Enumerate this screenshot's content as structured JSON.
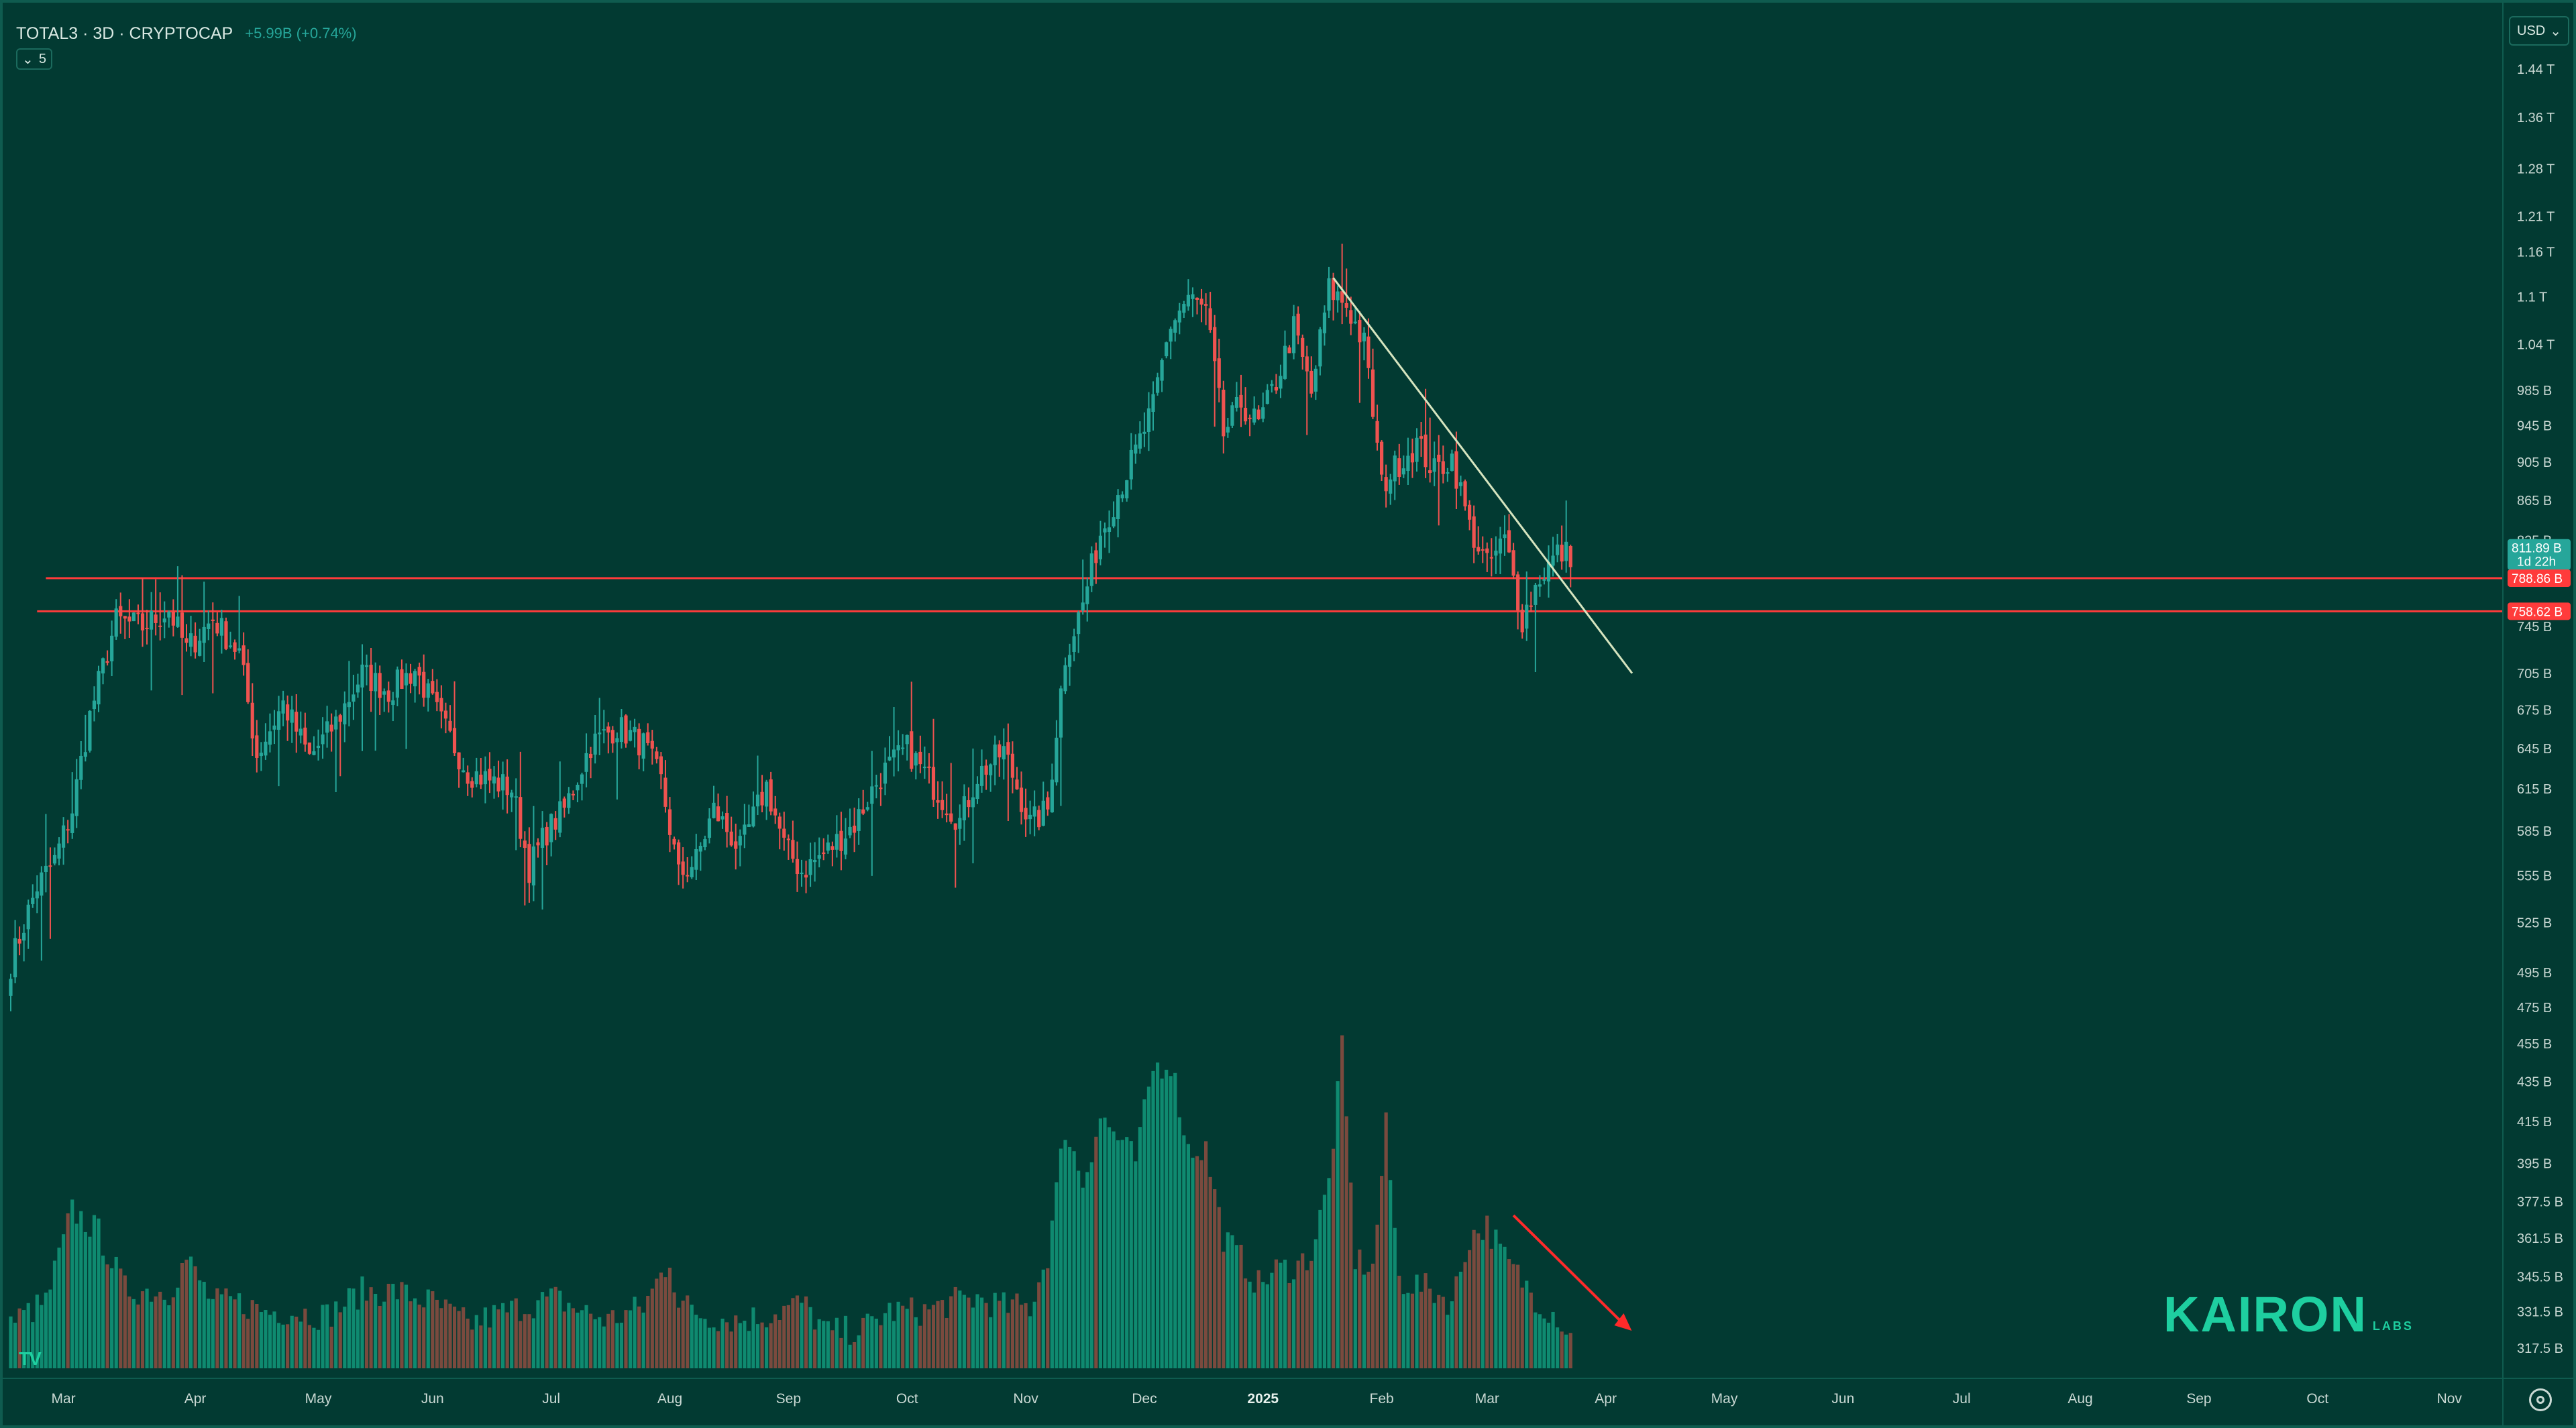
{
  "header": {
    "symbol": "TOTAL3 · 3D · CRYPTOCAP",
    "change": "+5.99B (+0.74%)"
  },
  "collapse_button": {
    "icon": "chevron-down-icon",
    "count": "5"
  },
  "currency": {
    "label": "USD",
    "icon": "chevron-down-icon"
  },
  "brand": {
    "name": "KAIRON",
    "sub": "LABS"
  },
  "colors": {
    "background": "#023a32",
    "up": "#26a69a",
    "down": "#ef5350",
    "volume_up": "#0f8a70",
    "volume_down": "#7a4a3e",
    "trendline": "#d6e4bf",
    "level": "#ff3b3b",
    "current_tag": "#26a69a"
  },
  "chart_data": {
    "type": "candlestick",
    "interval": "3D",
    "y_scale": "log",
    "ylim": [
      310,
      1490
    ],
    "price_axis_labels": [
      {
        "label": "1.44 T",
        "value": 1440
      },
      {
        "label": "1.36 T",
        "value": 1360
      },
      {
        "label": "1.28 T",
        "value": 1280
      },
      {
        "label": "1.21 T",
        "value": 1210
      },
      {
        "label": "1.16 T",
        "value": 1160
      },
      {
        "label": "1.1 T",
        "value": 1100
      },
      {
        "label": "1.04 T",
        "value": 1040
      },
      {
        "label": "985 B",
        "value": 985
      },
      {
        "label": "945 B",
        "value": 945
      },
      {
        "label": "905 B",
        "value": 905
      },
      {
        "label": "865 B",
        "value": 865
      },
      {
        "label": "825 B",
        "value": 825
      },
      {
        "label": "745 B",
        "value": 745
      },
      {
        "label": "705 B",
        "value": 705
      },
      {
        "label": "675 B",
        "value": 675
      },
      {
        "label": "645 B",
        "value": 645
      },
      {
        "label": "615 B",
        "value": 615
      },
      {
        "label": "585 B",
        "value": 585
      },
      {
        "label": "555 B",
        "value": 555
      },
      {
        "label": "525 B",
        "value": 525
      },
      {
        "label": "495 B",
        "value": 495
      },
      {
        "label": "475 B",
        "value": 475
      },
      {
        "label": "455 B",
        "value": 455
      },
      {
        "label": "435 B",
        "value": 435
      },
      {
        "label": "415 B",
        "value": 415
      },
      {
        "label": "395 B",
        "value": 395
      },
      {
        "label": "377.5 B",
        "value": 377.5
      },
      {
        "label": "361.5 B",
        "value": 361.5
      },
      {
        "label": "345.5 B",
        "value": 345.5
      },
      {
        "label": "331.5 B",
        "value": 331.5
      },
      {
        "label": "317.5 B",
        "value": 317.5
      }
    ],
    "time_axis_labels": [
      {
        "label": "Mar",
        "bar": 12
      },
      {
        "label": "Apr",
        "bar": 42
      },
      {
        "label": "May",
        "bar": 70
      },
      {
        "label": "Jun",
        "bar": 96
      },
      {
        "label": "Jul",
        "bar": 123
      },
      {
        "label": "Aug",
        "bar": 150
      },
      {
        "label": "Sep",
        "bar": 177
      },
      {
        "label": "Oct",
        "bar": 204
      },
      {
        "label": "Nov",
        "bar": 231
      },
      {
        "label": "Dec",
        "bar": 258
      },
      {
        "label": "2025",
        "bar": 285,
        "bold": true
      },
      {
        "label": "Feb",
        "bar": 312
      },
      {
        "label": "Mar",
        "bar": 336
      },
      {
        "label": "Apr",
        "bar": 363
      },
      {
        "label": "May",
        "bar": 390
      },
      {
        "label": "Jun",
        "bar": 417
      },
      {
        "label": "Jul",
        "bar": 444
      },
      {
        "label": "Aug",
        "bar": 471
      },
      {
        "label": "Sep",
        "bar": 498
      },
      {
        "label": "Oct",
        "bar": 525
      },
      {
        "label": "Nov",
        "bar": 555
      }
    ],
    "price_key": [
      [
        0,
        500
      ],
      [
        6,
        548
      ],
      [
        10,
        565
      ],
      [
        14,
        600
      ],
      [
        18,
        670
      ],
      [
        24,
        750
      ],
      [
        30,
        745
      ],
      [
        36,
        760
      ],
      [
        40,
        725
      ],
      [
        46,
        752
      ],
      [
        52,
        722
      ],
      [
        56,
        640
      ],
      [
        62,
        680
      ],
      [
        68,
        638
      ],
      [
        74,
        665
      ],
      [
        80,
        705
      ],
      [
        86,
        690
      ],
      [
        92,
        708
      ],
      [
        98,
        665
      ],
      [
        104,
        628
      ],
      [
        110,
        620
      ],
      [
        114,
        615
      ],
      [
        118,
        560
      ],
      [
        122,
        585
      ],
      [
        126,
        600
      ],
      [
        132,
        648
      ],
      [
        138,
        662
      ],
      [
        144,
        648
      ],
      [
        148,
        620
      ],
      [
        152,
        555
      ],
      [
        156,
        565
      ],
      [
        160,
        600
      ],
      [
        166,
        572
      ],
      [
        172,
        617
      ],
      [
        176,
        575
      ],
      [
        180,
        558
      ],
      [
        186,
        572
      ],
      [
        192,
        590
      ],
      [
        198,
        625
      ],
      [
        204,
        645
      ],
      [
        210,
        617
      ],
      [
        216,
        592
      ],
      [
        220,
        625
      ],
      [
        226,
        643
      ],
      [
        232,
        590
      ],
      [
        236,
        600
      ],
      [
        240,
        720
      ],
      [
        244,
        765
      ],
      [
        248,
        832
      ],
      [
        252,
        873
      ],
      [
        256,
        915
      ],
      [
        260,
        965
      ],
      [
        264,
        1065
      ],
      [
        268,
        1100
      ],
      [
        272,
        1080
      ],
      [
        276,
        935
      ],
      [
        280,
        970
      ],
      [
        284,
        945
      ],
      [
        288,
        995
      ],
      [
        292,
        1060
      ],
      [
        296,
        980
      ],
      [
        300,
        1110
      ],
      [
        304,
        1090
      ],
      [
        308,
        1040
      ],
      [
        312,
        880
      ],
      [
        316,
        905
      ],
      [
        320,
        925
      ],
      [
        324,
        895
      ],
      [
        328,
        910
      ],
      [
        332,
        838
      ],
      [
        336,
        800
      ],
      [
        340,
        825
      ],
      [
        344,
        752
      ],
      [
        348,
        790
      ],
      [
        352,
        812
      ],
      [
        355,
        812
      ]
    ],
    "levels": [
      {
        "price": 788.86,
        "label": "788.86 B",
        "from_bar": 8
      },
      {
        "price": 758.62,
        "label": "758.62 B",
        "from_bar": 6
      }
    ],
    "current": {
      "price": 811.89,
      "label": "811.89 B",
      "countdown": "1d 22h"
    },
    "trendline": {
      "from": {
        "bar": 301,
        "price": 1125
      },
      "to": {
        "bar": 369,
        "price": 705
      }
    },
    "volume_arrow": {
      "from_bar": 342,
      "to_bar": 368
    },
    "volume_base": 310,
    "volume_peak": 460,
    "volume_key": [
      [
        0,
        331
      ],
      [
        8,
        340
      ],
      [
        14,
        382
      ],
      [
        20,
        372
      ],
      [
        26,
        346
      ],
      [
        36,
        345
      ],
      [
        40,
        360
      ],
      [
        46,
        340
      ],
      [
        52,
        340
      ],
      [
        58,
        336
      ],
      [
        64,
        336
      ],
      [
        72,
        334
      ],
      [
        80,
        345
      ],
      [
        88,
        345
      ],
      [
        96,
        340
      ],
      [
        104,
        330
      ],
      [
        110,
        334
      ],
      [
        116,
        338
      ],
      [
        124,
        342
      ],
      [
        130,
        336
      ],
      [
        136,
        332
      ],
      [
        144,
        338
      ],
      [
        150,
        360
      ],
      [
        152,
        340
      ],
      [
        158,
        334
      ],
      [
        166,
        332
      ],
      [
        172,
        334
      ],
      [
        180,
        340
      ],
      [
        186,
        326
      ],
      [
        194,
        328
      ],
      [
        200,
        336
      ],
      [
        208,
        336
      ],
      [
        214,
        340
      ],
      [
        220,
        342
      ],
      [
        226,
        338
      ],
      [
        232,
        338
      ],
      [
        234,
        350
      ],
      [
        236,
        362
      ],
      [
        240,
        420
      ],
      [
        244,
        395
      ],
      [
        248,
        425
      ],
      [
        252,
        415
      ],
      [
        256,
        405
      ],
      [
        260,
        447
      ],
      [
        264,
        450
      ],
      [
        268,
        410
      ],
      [
        272,
        410
      ],
      [
        276,
        370
      ],
      [
        280,
        360
      ],
      [
        284,
        348
      ],
      [
        288,
        355
      ],
      [
        292,
        356
      ],
      [
        296,
        362
      ],
      [
        300,
        395
      ],
      [
        303,
        455
      ],
      [
        306,
        360
      ],
      [
        310,
        355
      ],
      [
        313,
        420
      ],
      [
        316,
        350
      ],
      [
        320,
        348
      ],
      [
        324,
        345
      ],
      [
        328,
        340
      ],
      [
        332,
        370
      ],
      [
        336,
        375
      ],
      [
        340,
        360
      ],
      [
        344,
        350
      ],
      [
        348,
        340
      ],
      [
        352,
        334
      ],
      [
        355,
        324
      ]
    ]
  }
}
